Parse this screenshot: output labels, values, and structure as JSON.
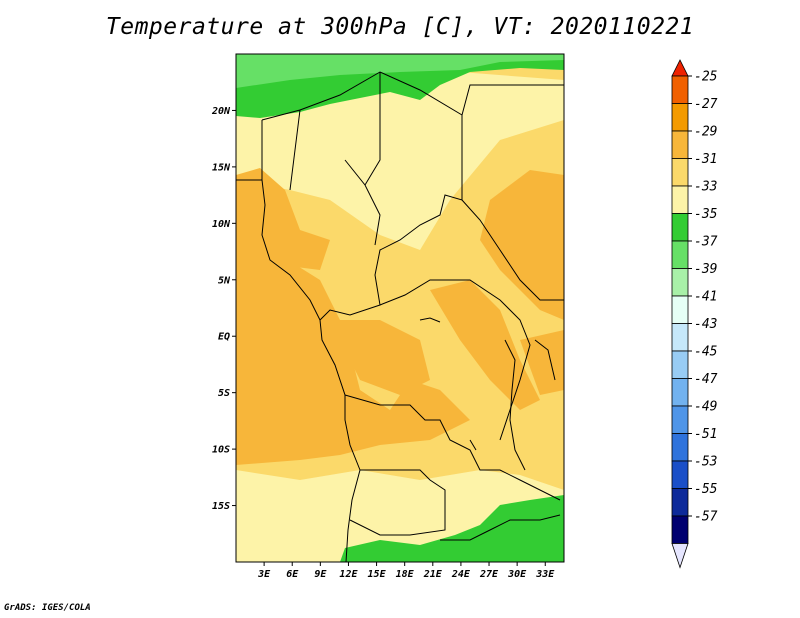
{
  "title": "Temperature at 300hPa [C], VT: 2020110221",
  "credit": "GrADS: IGES/COLA",
  "map": {
    "lat_labels": [
      "20N",
      "15N",
      "10N",
      "5N",
      "EQ",
      "5S",
      "10S",
      "15S"
    ],
    "lat_values": [
      20,
      15,
      10,
      5,
      0,
      -5,
      -10,
      -15
    ],
    "lon_labels": [
      "3E",
      "6E",
      "9E",
      "12E",
      "15E",
      "18E",
      "21E",
      "24E",
      "27E",
      "30E",
      "33E"
    ],
    "lon_values": [
      3,
      6,
      9,
      12,
      15,
      18,
      21,
      24,
      27,
      30,
      33
    ],
    "lat_range": [
      -20,
      25
    ],
    "lon_range": [
      0,
      35
    ]
  },
  "colorbar": {
    "labels": [
      "-25",
      "-27",
      "-29",
      "-31",
      "-33",
      "-35",
      "-37",
      "-39",
      "-41",
      "-43",
      "-45",
      "-47",
      "-49",
      "-51",
      "-53",
      "-55",
      "-57"
    ],
    "colors": [
      "#ee2200",
      "#f06000",
      "#f39a00",
      "#f7b63a",
      "#fbd96a",
      "#fdf3a8",
      "#33cc33",
      "#66e066",
      "#a8f0a8",
      "#e6fff6",
      "#c6e8fa",
      "#98ccf4",
      "#72b2ef",
      "#4f95e8",
      "#2f73dc",
      "#1a4fc8",
      "#0d2a9a",
      "#000070",
      "#e6e6ff"
    ]
  }
}
